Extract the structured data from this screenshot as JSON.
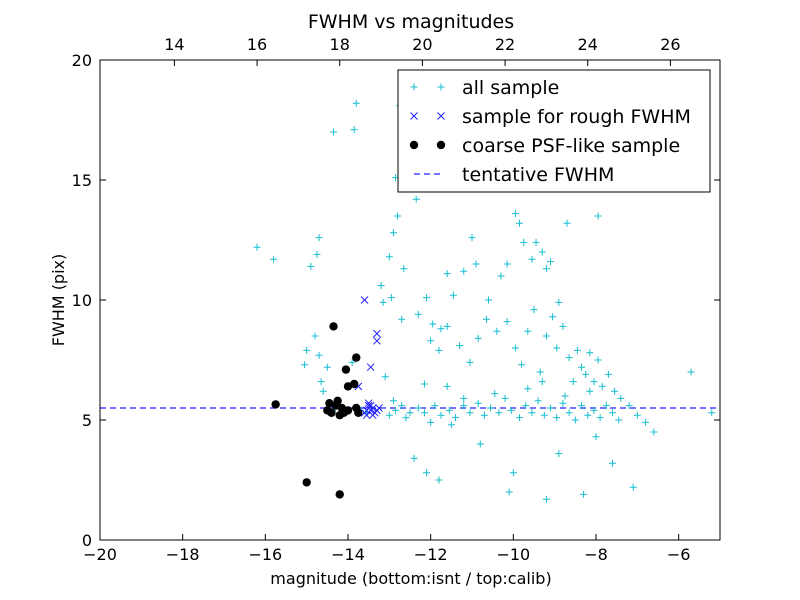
{
  "chart_data": {
    "type": "scatter",
    "title": "FWHM vs magnitudes",
    "xlabel": "magnitude (bottom:isnt / top:calib)",
    "ylabel": "FWHM (pix)",
    "xlim": [
      -20,
      -5
    ],
    "ylim": [
      0,
      20
    ],
    "top_xlim": [
      12.2,
      27.2
    ],
    "x_ticks": [
      -20,
      -18,
      -16,
      -14,
      -12,
      -10,
      -8,
      -6
    ],
    "x_tick_labels": [
      "−20",
      "−18",
      "−16",
      "−14",
      "−12",
      "−10",
      "−8",
      "−6"
    ],
    "y_ticks": [
      0,
      5,
      10,
      15,
      20
    ],
    "y_tick_labels": [
      "0",
      "5",
      "10",
      "15",
      "20"
    ],
    "top_ticks": [
      14,
      16,
      18,
      20,
      22,
      24,
      26
    ],
    "top_tick_labels": [
      "14",
      "16",
      "18",
      "20",
      "22",
      "24",
      "26"
    ],
    "legend_position": "top-right",
    "colors": {
      "all_sample": "#17becf",
      "rough_sample": "#1f1fff",
      "psf_sample": "#000000",
      "tentative": "#2020ff"
    },
    "series": [
      {
        "name": "all sample",
        "marker": "plus",
        "color": "#17becf",
        "points": [
          [
            -16.2,
            12.2
          ],
          [
            -15.8,
            11.7
          ],
          [
            -14.9,
            11.4
          ],
          [
            -14.7,
            12.6
          ],
          [
            -14.75,
            11.9
          ],
          [
            -14.35,
            17.0
          ],
          [
            -13.85,
            17.1
          ],
          [
            -13.8,
            18.2
          ],
          [
            -12.75,
            18.1
          ],
          [
            -12.85,
            15.1
          ],
          [
            -12.35,
            14.2
          ],
          [
            -12.6,
            16.5
          ],
          [
            -12.9,
            12.8
          ],
          [
            -12.8,
            13.5
          ],
          [
            -13.0,
            11.8
          ],
          [
            -13.2,
            10.6
          ],
          [
            -12.95,
            10.1
          ],
          [
            -12.65,
            11.3
          ],
          [
            -13.15,
            9.9
          ],
          [
            -15.05,
            7.3
          ],
          [
            -15.0,
            7.9
          ],
          [
            -14.8,
            8.5
          ],
          [
            -14.7,
            7.7
          ],
          [
            -14.65,
            6.6
          ],
          [
            -14.5,
            7.2
          ],
          [
            -14.6,
            6.2
          ],
          [
            -13.9,
            7.4
          ],
          [
            -13.1,
            6.8
          ],
          [
            -12.7,
            9.2
          ],
          [
            -12.3,
            9.4
          ],
          [
            -12.1,
            10.1
          ],
          [
            -11.95,
            9.0
          ],
          [
            -11.75,
            8.8
          ],
          [
            -11.6,
            11.1
          ],
          [
            -11.45,
            10.2
          ],
          [
            -11.2,
            11.2
          ],
          [
            -11.0,
            12.6
          ],
          [
            -10.9,
            11.5
          ],
          [
            -10.6,
            10.0
          ],
          [
            -10.3,
            11.0
          ],
          [
            -10.15,
            11.5
          ],
          [
            -9.95,
            13.6
          ],
          [
            -9.85,
            13.2
          ],
          [
            -9.75,
            12.4
          ],
          [
            -9.55,
            11.7
          ],
          [
            -9.45,
            12.4
          ],
          [
            -9.3,
            12.0
          ],
          [
            -9.2,
            11.3
          ],
          [
            -9.1,
            11.6
          ],
          [
            -8.9,
            9.9
          ],
          [
            -8.7,
            13.2
          ],
          [
            -8.6,
            14.9
          ],
          [
            -8.35,
            16.2
          ],
          [
            -7.95,
            13.5
          ],
          [
            -8.5,
            15.6
          ],
          [
            -12.0,
            8.3
          ],
          [
            -11.8,
            7.9
          ],
          [
            -11.6,
            8.9
          ],
          [
            -11.3,
            8.1
          ],
          [
            -11.05,
            7.4
          ],
          [
            -10.85,
            8.4
          ],
          [
            -10.65,
            9.2
          ],
          [
            -10.4,
            8.7
          ],
          [
            -10.15,
            9.1
          ],
          [
            -9.95,
            8.0
          ],
          [
            -9.8,
            7.3
          ],
          [
            -9.65,
            8.7
          ],
          [
            -9.5,
            9.6
          ],
          [
            -9.35,
            7.0
          ],
          [
            -9.2,
            8.5
          ],
          [
            -9.05,
            9.3
          ],
          [
            -8.95,
            8.0
          ],
          [
            -8.8,
            8.9
          ],
          [
            -8.65,
            7.6
          ],
          [
            -8.55,
            6.6
          ],
          [
            -8.45,
            7.9
          ],
          [
            -8.35,
            7.2
          ],
          [
            -8.25,
            6.9
          ],
          [
            -8.15,
            7.8
          ],
          [
            -8.05,
            6.6
          ],
          [
            -7.95,
            7.5
          ],
          [
            -7.85,
            6.4
          ],
          [
            -7.7,
            6.9
          ],
          [
            -7.55,
            6.2
          ],
          [
            -7.4,
            5.9
          ],
          [
            -7.2,
            5.6
          ],
          [
            -7.0,
            5.2
          ],
          [
            -6.8,
            4.9
          ],
          [
            -6.6,
            4.5
          ],
          [
            -5.7,
            7.0
          ],
          [
            -5.2,
            5.3
          ],
          [
            -7.1,
            2.2
          ],
          [
            -7.6,
            3.2
          ],
          [
            -8.9,
            3.6
          ],
          [
            -8.0,
            4.3
          ],
          [
            -8.3,
            1.9
          ],
          [
            -9.2,
            1.7
          ],
          [
            -10.1,
            2.0
          ],
          [
            -10.0,
            2.8
          ],
          [
            -11.8,
            2.5
          ],
          [
            -12.1,
            2.8
          ],
          [
            -12.4,
            3.4
          ],
          [
            -10.8,
            4.0
          ],
          [
            -11.5,
            4.8
          ],
          [
            -12.0,
            4.9
          ],
          [
            -12.5,
            5.3
          ],
          [
            -12.7,
            5.6
          ],
          [
            -12.85,
            5.4
          ],
          [
            -13.0,
            5.2
          ],
          [
            -12.9,
            5.8
          ],
          [
            -12.6,
            5.1
          ],
          [
            -12.3,
            5.5
          ],
          [
            -12.15,
            5.3
          ],
          [
            -11.9,
            5.6
          ],
          [
            -11.75,
            5.2
          ],
          [
            -11.55,
            5.4
          ],
          [
            -11.4,
            5.1
          ],
          [
            -11.2,
            5.6
          ],
          [
            -11.05,
            5.3
          ],
          [
            -10.85,
            5.7
          ],
          [
            -10.7,
            5.2
          ],
          [
            -10.55,
            5.5
          ],
          [
            -10.35,
            5.3
          ],
          [
            -10.2,
            5.9
          ],
          [
            -10.05,
            5.4
          ],
          [
            -9.85,
            5.1
          ],
          [
            -9.7,
            5.6
          ],
          [
            -9.55,
            5.3
          ],
          [
            -9.4,
            5.8
          ],
          [
            -9.25,
            5.2
          ],
          [
            -9.1,
            5.5
          ],
          [
            -8.95,
            5.1
          ],
          [
            -8.8,
            5.7
          ],
          [
            -8.65,
            5.3
          ],
          [
            -8.5,
            5.0
          ],
          [
            -8.35,
            5.6
          ],
          [
            -8.2,
            5.2
          ],
          [
            -8.05,
            5.4
          ],
          [
            -7.9,
            5.1
          ],
          [
            -7.75,
            5.6
          ],
          [
            -7.6,
            5.3
          ],
          [
            -7.45,
            5.0
          ],
          [
            -11.2,
            5.9
          ],
          [
            -10.45,
            6.1
          ],
          [
            -9.65,
            6.3
          ],
          [
            -8.75,
            6.0
          ],
          [
            -8.15,
            6.2
          ],
          [
            -11.6,
            6.4
          ],
          [
            -12.15,
            6.5
          ],
          [
            -9.3,
            6.6
          ],
          [
            -14.3,
            5.5
          ],
          [
            -14.15,
            5.2
          ],
          [
            -13.7,
            5.4
          ],
          [
            -13.55,
            5.3
          ]
        ]
      },
      {
        "name": "sample for rough FWHM",
        "marker": "x",
        "color": "#1f1fff",
        "points": [
          [
            -13.6,
            10.0
          ],
          [
            -13.3,
            8.6
          ],
          [
            -13.3,
            8.3
          ],
          [
            -13.45,
            7.2
          ],
          [
            -13.75,
            6.4
          ],
          [
            -13.5,
            5.7
          ],
          [
            -13.4,
            5.5
          ],
          [
            -13.45,
            5.4
          ],
          [
            -13.35,
            5.3
          ],
          [
            -13.55,
            5.2
          ],
          [
            -13.3,
            5.4
          ],
          [
            -13.5,
            5.6
          ],
          [
            -13.4,
            5.2
          ],
          [
            -13.6,
            5.3
          ],
          [
            -13.25,
            5.5
          ],
          [
            -13.45,
            5.6
          ],
          [
            -13.55,
            5.4
          ]
        ]
      },
      {
        "name": "coarse PSF-like sample",
        "marker": "dot",
        "color": "#000000",
        "points": [
          [
            -15.75,
            5.65
          ],
          [
            -14.35,
            8.9
          ],
          [
            -13.8,
            7.6
          ],
          [
            -14.05,
            7.1
          ],
          [
            -14.0,
            6.4
          ],
          [
            -13.85,
            6.5
          ],
          [
            -14.45,
            5.7
          ],
          [
            -14.25,
            5.8
          ],
          [
            -14.4,
            5.3
          ],
          [
            -14.2,
            5.2
          ],
          [
            -14.15,
            5.5
          ],
          [
            -14.0,
            5.4
          ],
          [
            -13.8,
            5.5
          ],
          [
            -13.75,
            5.3
          ],
          [
            -14.5,
            5.4
          ],
          [
            -14.3,
            5.6
          ],
          [
            -14.1,
            5.3
          ],
          [
            -15.0,
            2.4
          ],
          [
            -14.2,
            1.9
          ]
        ]
      }
    ],
    "reference_line": {
      "name": "tentative FWHM",
      "y": 5.5,
      "style": "dashed",
      "color": "#2020ff"
    },
    "legend": [
      {
        "key": "all_sample",
        "label": "all sample",
        "marker": "plus"
      },
      {
        "key": "rough_sample",
        "label": "sample for rough FWHM",
        "marker": "x"
      },
      {
        "key": "psf_sample",
        "label": "coarse PSF-like sample",
        "marker": "dot"
      },
      {
        "key": "tentative",
        "label": "tentative FWHM",
        "marker": "dash"
      }
    ]
  }
}
